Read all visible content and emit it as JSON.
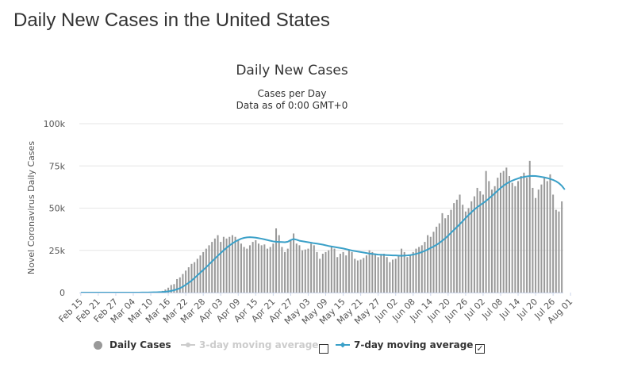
{
  "page": {
    "heading": "Daily New Cases in the United States"
  },
  "chart_data": {
    "type": "bar",
    "title": "Daily New Cases",
    "subtitle_lines": [
      "Cases per Day",
      "Data as of 0:00 GMT+0"
    ],
    "ylabel": "Novel Coronavirus Daily Cases",
    "xlabel": "",
    "ylim": [
      0,
      100000
    ],
    "y_ticks": [
      0,
      25000,
      50000,
      75000,
      100000
    ],
    "y_tick_labels": [
      "0",
      "25k",
      "50k",
      "75k",
      "100k"
    ],
    "x_tick_labels": [
      "Feb 15",
      "Feb 21",
      "Feb 27",
      "Mar 04",
      "Mar 10",
      "Mar 16",
      "Mar 22",
      "Mar 28",
      "Apr 03",
      "Apr 09",
      "Apr 15",
      "Apr 21",
      "Apr 27",
      "May 03",
      "May 09",
      "May 15",
      "May 21",
      "May 27",
      "Jun 02",
      "Jun 08",
      "Jun 14",
      "Jun 20",
      "Jun 26",
      "Jul 02",
      "Jul 08",
      "Jul 14",
      "Jul 20",
      "Jul 26",
      "Aug 01"
    ],
    "grid": true,
    "legend_position": "bottom",
    "colors": {
      "bars": "#999999",
      "avg7": "#3aa0c8",
      "avg3": "#cccccc"
    },
    "series": [
      {
        "name": "Daily Cases",
        "type": "bar",
        "x_first": "Feb 15",
        "x_last": "Aug 04",
        "values": [
          0,
          0,
          0,
          0,
          0,
          0,
          0,
          0,
          0,
          0,
          0,
          0,
          0,
          0,
          0,
          0,
          10,
          20,
          30,
          40,
          50,
          80,
          100,
          150,
          200,
          300,
          500,
          700,
          1000,
          1800,
          2900,
          4500,
          5000,
          8000,
          9000,
          11000,
          13000,
          15000,
          17000,
          18000,
          20000,
          22000,
          24000,
          26000,
          28000,
          30000,
          32000,
          34000,
          30000,
          33000,
          32000,
          33000,
          34000,
          33000,
          31000,
          29000,
          27000,
          26000,
          28000,
          30000,
          31000,
          29000,
          28000,
          28500,
          26000,
          27000,
          29000,
          38000,
          34000,
          27000,
          24000,
          26000,
          31000,
          35000,
          29000,
          28000,
          25000,
          25500,
          26000,
          29000,
          28000,
          24000,
          20000,
          23000,
          24000,
          25000,
          27000,
          26000,
          21000,
          23000,
          24000,
          22000,
          25000,
          24000,
          20000,
          19000,
          19500,
          20500,
          22000,
          25000,
          24000,
          23000,
          21000,
          22500,
          23000,
          21000,
          18000,
          19500,
          20000,
          22000,
          26000,
          24000,
          21000,
          22000,
          24000,
          26000,
          27000,
          28000,
          30000,
          34000,
          33000,
          36000,
          39000,
          41000,
          47000,
          44000,
          46000,
          49000,
          53000,
          55000,
          58000,
          52000,
          48000,
          50000,
          54000,
          57000,
          62000,
          60000,
          58000,
          72000,
          66000,
          61000,
          63000,
          68000,
          71000,
          72000,
          74000,
          69000,
          65000,
          63000,
          66000,
          69000,
          71000,
          68000,
          78000,
          62000,
          56000,
          61000,
          64000,
          68000,
          66000,
          70000,
          58000,
          49000,
          48000,
          54000
        ]
      },
      {
        "name": "3-day moving average",
        "type": "line",
        "visible": false,
        "values": []
      },
      {
        "name": "7-day moving average",
        "type": "line",
        "visible": true,
        "values": [
          0,
          0,
          0,
          0,
          0,
          0,
          0,
          0,
          0,
          0,
          0,
          0,
          0,
          0,
          0,
          0,
          0,
          0,
          0,
          0,
          20,
          40,
          60,
          80,
          110,
          150,
          200,
          280,
          380,
          530,
          720,
          1000,
          1400,
          1900,
          2600,
          3500,
          4600,
          5800,
          7100,
          8600,
          10200,
          11800,
          13400,
          15000,
          16700,
          18400,
          20100,
          21800,
          23400,
          25000,
          26500,
          27900,
          29100,
          30200,
          31100,
          31900,
          32400,
          32700,
          32800,
          32700,
          32500,
          32200,
          31900,
          31500,
          31100,
          30700,
          30300,
          30100,
          30000,
          29900,
          29800,
          30100,
          31100,
          31700,
          31300,
          30700,
          30400,
          30100,
          29800,
          29500,
          29200,
          29000,
          28700,
          28400,
          28000,
          27600,
          27300,
          27000,
          26700,
          26400,
          26100,
          25700,
          25300,
          24900,
          24600,
          24300,
          24000,
          23700,
          23400,
          23100,
          22900,
          22700,
          22500,
          22400,
          22300,
          22200,
          22100,
          22000,
          22000,
          21900,
          21800,
          21900,
          22000,
          22200,
          22500,
          22900,
          23400,
          24000,
          24700,
          25500,
          26400,
          27300,
          28300,
          29400,
          30700,
          32100,
          33700,
          35400,
          37100,
          38800,
          40500,
          42300,
          44100,
          45900,
          47600,
          49200,
          50600,
          51800,
          53000,
          54300,
          55700,
          57200,
          58800,
          60400,
          61900,
          63300,
          64500,
          65500,
          66300,
          67000,
          67600,
          68100,
          68500,
          68800,
          69000,
          69100,
          69000,
          68800,
          68500,
          68200,
          67800,
          67300,
          66700,
          65900,
          64800,
          63200,
          61000
        ]
      }
    ]
  },
  "legend": {
    "items": [
      {
        "label": "Daily Cases"
      },
      {
        "label": "3-day moving average"
      },
      {
        "label": "7-day moving average"
      }
    ],
    "checkbox_3day_mark": "",
    "checkbox_7day_mark": "✓"
  }
}
